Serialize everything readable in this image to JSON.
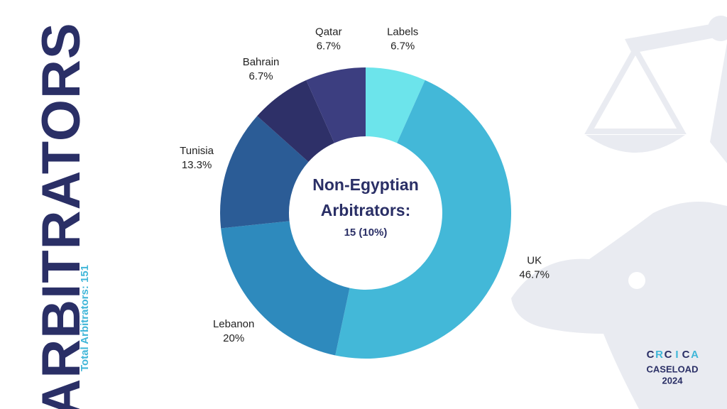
{
  "page": {
    "heading": "ARBITRATORS",
    "subheading": "Total Arbitrators: 151",
    "logo_letters": [
      "C",
      "R",
      "C",
      "I",
      "C",
      "A"
    ],
    "logo_lines": [
      "CASELOAD",
      "2024"
    ]
  },
  "chart_data": {
    "type": "pie",
    "donut": true,
    "center_title": [
      "Non-Egyptian",
      "Arbitrators:"
    ],
    "center_value": "15 (10%)",
    "categories": [
      "Labels",
      "UK",
      "Lebanon",
      "Tunisia",
      "Bahrain",
      "Qatar"
    ],
    "values": [
      6.7,
      46.7,
      20,
      13.3,
      6.7,
      6.7
    ],
    "value_labels": [
      "6.7%",
      "46.7%",
      "20%",
      "13.3%",
      "6.7%",
      "6.7%"
    ],
    "colors": [
      "#6ce4eb",
      "#43b8d8",
      "#2e8abd",
      "#2b5c96",
      "#2e3068",
      "#3c3e80"
    ]
  }
}
